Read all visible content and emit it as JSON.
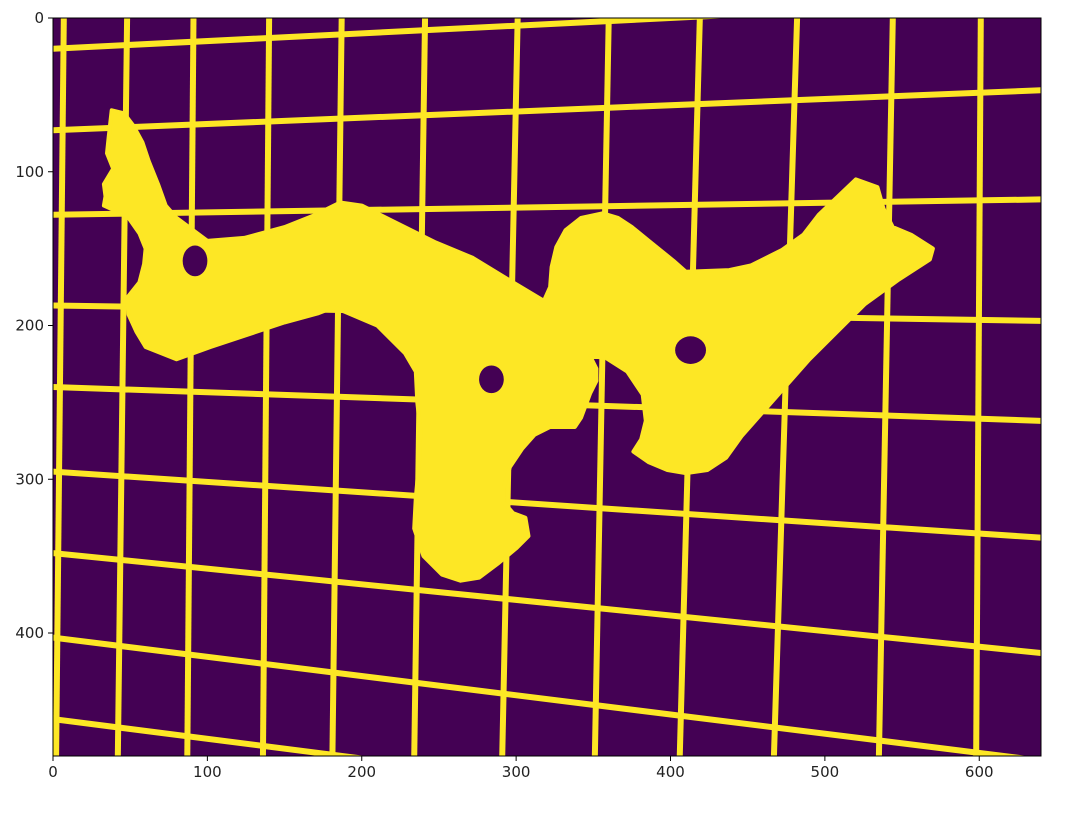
{
  "chart_data": {
    "type": "heatmap",
    "title": "",
    "xlabel": "",
    "ylabel": "",
    "xlim": [
      0,
      640
    ],
    "ylim": [
      480,
      0
    ],
    "x_ticks": [
      0,
      100,
      200,
      300,
      400,
      500,
      600
    ],
    "y_ticks": [
      0,
      100,
      200,
      300,
      400
    ],
    "x_tick_labels": [
      "0",
      "100",
      "200",
      "300",
      "400",
      "500",
      "600"
    ],
    "y_tick_labels": [
      "0",
      "100",
      "200",
      "300",
      "400"
    ],
    "colormap": {
      "low": "#440154",
      "high": "#fde725"
    },
    "grid_lines": {
      "vertical": [
        {
          "x0": 7,
          "x1": 2
        },
        {
          "x0": 48,
          "x1": 42
        },
        {
          "x0": 91,
          "x1": 87
        },
        {
          "x0": 140,
          "x1": 136
        },
        {
          "x0": 187,
          "x1": 181
        },
        {
          "x0": 241,
          "x1": 234
        },
        {
          "x0": 301,
          "x1": 291
        },
        {
          "x0": 360,
          "x1": 351
        },
        {
          "x0": 419,
          "x1": 406
        },
        {
          "x0": 482,
          "x1": 467
        },
        {
          "x0": 544,
          "x1": 535
        },
        {
          "x0": 601,
          "x1": 598
        }
      ],
      "horizontal": [
        {
          "y0": 20,
          "y1": -12
        },
        {
          "y0": 73,
          "y1": 47
        },
        {
          "y0": 128,
          "y1": 118
        },
        {
          "y0": 187,
          "y1": 197
        },
        {
          "y0": 240,
          "y1": 262
        },
        {
          "y0": 295,
          "y1": 338
        },
        {
          "y0": 348,
          "y1": 413
        },
        {
          "y0": 403,
          "y1": 483
        },
        {
          "y0": 456,
          "y1": 538
        }
      ]
    },
    "object_outline": [
      [
        38,
        60
      ],
      [
        36,
        78
      ],
      [
        35,
        88
      ],
      [
        39,
        98
      ],
      [
        33,
        108
      ],
      [
        34,
        116
      ],
      [
        33,
        122
      ],
      [
        44,
        127
      ],
      [
        49,
        130
      ],
      [
        56,
        140
      ],
      [
        60,
        150
      ],
      [
        59,
        160
      ],
      [
        56,
        172
      ],
      [
        48,
        182
      ],
      [
        49,
        193
      ],
      [
        54,
        204
      ],
      [
        60,
        214
      ],
      [
        70,
        218
      ],
      [
        80,
        222
      ],
      [
        102,
        214
      ],
      [
        126,
        206
      ],
      [
        150,
        198
      ],
      [
        172,
        192
      ],
      [
        182,
        188
      ],
      [
        210,
        200
      ],
      [
        228,
        218
      ],
      [
        235,
        230
      ],
      [
        236,
        250
      ],
      [
        238,
        268
      ],
      [
        237,
        290
      ],
      [
        235,
        312
      ],
      [
        234,
        332
      ],
      [
        240,
        350
      ],
      [
        252,
        362
      ],
      [
        264,
        366
      ],
      [
        276,
        364
      ],
      [
        288,
        355
      ],
      [
        300,
        345
      ],
      [
        308,
        337
      ],
      [
        306,
        325
      ],
      [
        298,
        322
      ],
      [
        292,
        315
      ],
      [
        292,
        305
      ],
      [
        296,
        292
      ],
      [
        304,
        280
      ],
      [
        312,
        271
      ],
      [
        322,
        266
      ],
      [
        338,
        266
      ],
      [
        342,
        260
      ],
      [
        348,
        244
      ],
      [
        352,
        236
      ],
      [
        352,
        228
      ],
      [
        348,
        220
      ],
      [
        358,
        221
      ],
      [
        372,
        230
      ],
      [
        382,
        245
      ],
      [
        384,
        262
      ],
      [
        381,
        274
      ],
      [
        376,
        282
      ],
      [
        386,
        289
      ],
      [
        398,
        294
      ],
      [
        410,
        296
      ],
      [
        424,
        294
      ],
      [
        436,
        286
      ],
      [
        446,
        272
      ],
      [
        490,
        222
      ],
      [
        526,
        186
      ],
      [
        548,
        170
      ],
      [
        568,
        157
      ],
      [
        570,
        150
      ],
      [
        556,
        141
      ],
      [
        544,
        136
      ],
      [
        538,
        124
      ],
      [
        534,
        110
      ],
      [
        520,
        105
      ],
      [
        496,
        128
      ],
      [
        486,
        141
      ],
      [
        472,
        151
      ],
      [
        452,
        161
      ],
      [
        438,
        164
      ],
      [
        410,
        165
      ],
      [
        402,
        158
      ],
      [
        386,
        145
      ],
      [
        375,
        136
      ],
      [
        366,
        130
      ],
      [
        356,
        127
      ],
      [
        342,
        130
      ],
      [
        332,
        138
      ],
      [
        326,
        149
      ],
      [
        323,
        162
      ],
      [
        322,
        175
      ],
      [
        318,
        184
      ],
      [
        298,
        172
      ],
      [
        272,
        156
      ],
      [
        248,
        146
      ],
      [
        220,
        132
      ],
      [
        200,
        122
      ],
      [
        186,
        120
      ],
      [
        170,
        128
      ],
      [
        150,
        136
      ],
      [
        124,
        143
      ],
      [
        100,
        145
      ],
      [
        80,
        130
      ],
      [
        73,
        122
      ],
      [
        68,
        108
      ],
      [
        62,
        93
      ],
      [
        58,
        81
      ],
      [
        52,
        70
      ],
      [
        46,
        62
      ]
    ],
    "holes": [
      {
        "cx": 92,
        "cy": 158,
        "rx": 8,
        "ry": 10
      },
      {
        "cx": 284,
        "cy": 235,
        "rx": 8,
        "ry": 9
      },
      {
        "cx": 413,
        "cy": 216,
        "rx": 10,
        "ry": 9
      }
    ]
  }
}
